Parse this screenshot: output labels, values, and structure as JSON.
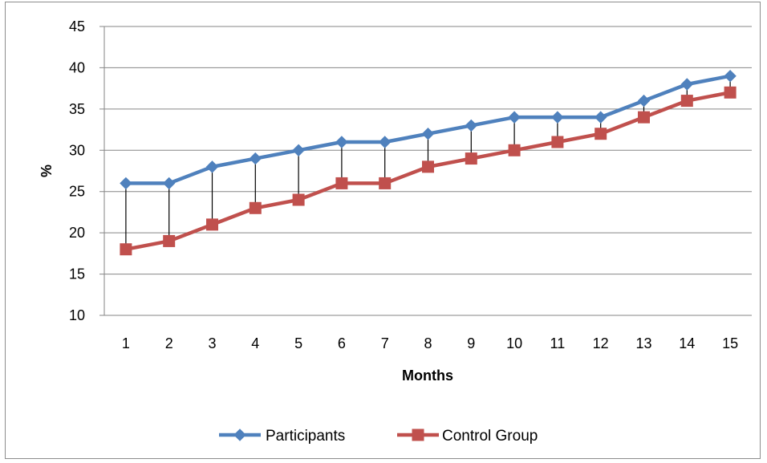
{
  "chart_data": {
    "type": "line",
    "title": "",
    "xlabel": "Months",
    "ylabel": "%",
    "categories": [
      "1",
      "2",
      "3",
      "4",
      "5",
      "6",
      "7",
      "8",
      "9",
      "10",
      "11",
      "12",
      "13",
      "14",
      "15"
    ],
    "ylim": [
      10,
      45
    ],
    "yticks": [
      "10",
      "15",
      "20",
      "25",
      "30",
      "35",
      "40",
      "45"
    ],
    "grid": true,
    "legend_position": "bottom",
    "drop_lines": true,
    "series": [
      {
        "name": "Participants",
        "color": "#4f81bd",
        "marker": "diamond",
        "values": [
          26,
          26,
          28,
          29,
          30,
          31,
          31,
          32,
          33,
          34,
          34,
          34,
          36,
          38,
          39
        ]
      },
      {
        "name": "Control Group",
        "color": "#c0504d",
        "marker": "square",
        "values": [
          18,
          19,
          21,
          23,
          24,
          26,
          26,
          28,
          29,
          30,
          31,
          32,
          34,
          36,
          37
        ]
      }
    ]
  }
}
